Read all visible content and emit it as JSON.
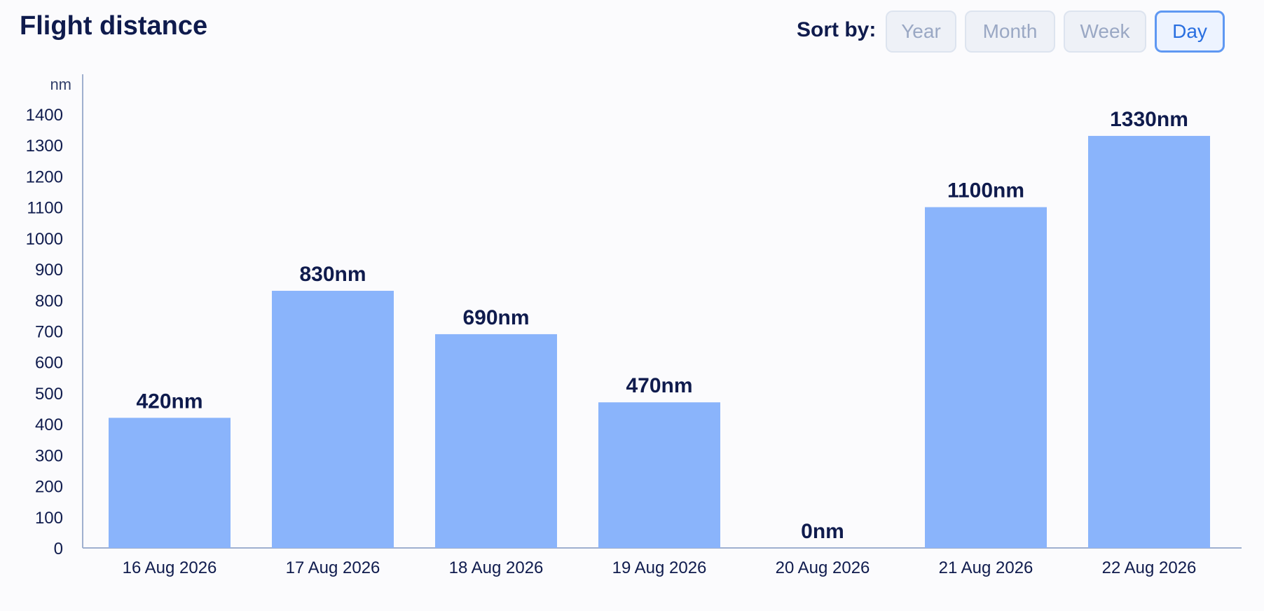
{
  "header": {
    "title": "Flight distance",
    "sort_label": "Sort by:",
    "sort_options": [
      "Year",
      "Month",
      "Week",
      "Day"
    ],
    "active_sort": "Day"
  },
  "colors": {
    "bar": "#8ab4fb",
    "axis": "#9fb0cf",
    "text": "#0f1b4d",
    "accent": "#5f98f2"
  },
  "chart_data": {
    "type": "bar",
    "title": "Flight distance",
    "ylabel": "nm",
    "xlabel": "",
    "categories": [
      "16 Aug 2026",
      "17 Aug 2026",
      "18 Aug 2026",
      "19 Aug 2026",
      "20 Aug 2026",
      "21 Aug 2026",
      "22 Aug 2026"
    ],
    "values": [
      420,
      830,
      690,
      470,
      0,
      1100,
      1330
    ],
    "value_labels": [
      "420nm",
      "830nm",
      "690nm",
      "470nm",
      "0nm",
      "1100nm",
      "1330nm"
    ],
    "ylim": [
      0,
      1400
    ],
    "yticks": [
      0,
      100,
      200,
      300,
      400,
      500,
      600,
      700,
      800,
      900,
      1000,
      1100,
      1200,
      1300,
      1400
    ],
    "grid": false,
    "legend": "none"
  }
}
